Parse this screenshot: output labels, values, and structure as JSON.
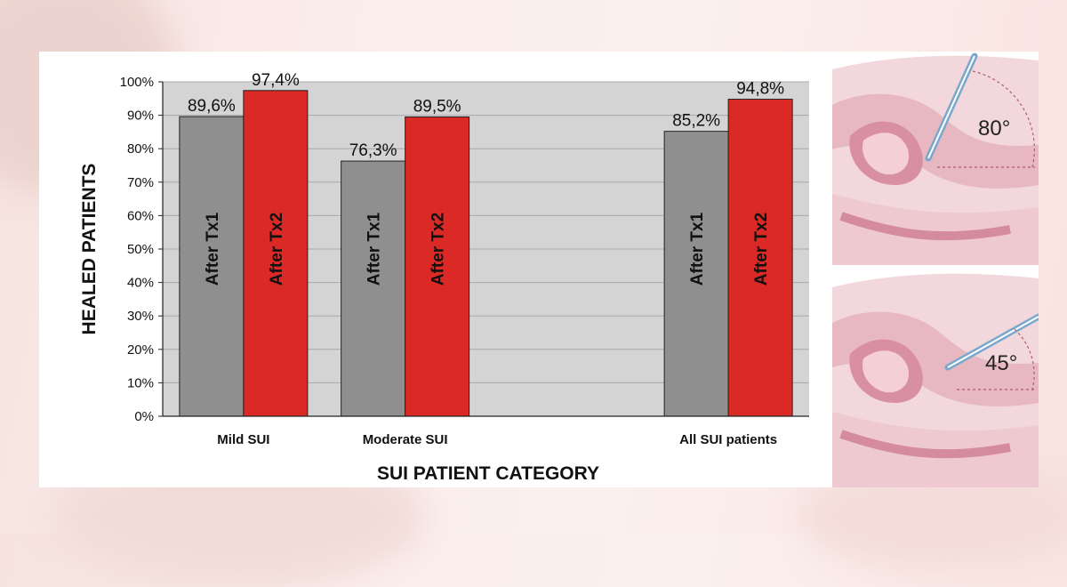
{
  "chart_data": {
    "type": "bar",
    "categories": [
      "Mild SUI",
      "Moderate SUI",
      "",
      "All SUI patients"
    ],
    "series": [
      {
        "name": "After Tx1",
        "values": [
          89.6,
          76.3,
          null,
          85.2
        ],
        "color": "#8f8f8f",
        "labels": [
          "89,6%",
          "76,3%",
          "",
          "85,2%"
        ]
      },
      {
        "name": "After Tx2",
        "values": [
          97.4,
          89.5,
          null,
          94.8
        ],
        "color": "#db2a26",
        "labels": [
          "97,4%",
          "89,5%",
          "",
          "94,8%"
        ]
      }
    ],
    "ylim": [
      0,
      100
    ],
    "yticks": [
      "0%",
      "10%",
      "20%",
      "30%",
      "40%",
      "50%",
      "60%",
      "70%",
      "80%",
      "90%",
      "100%"
    ],
    "ylabel": "HEALED PATIENTS",
    "xlabel": "SUI PATIENT CATEGORY",
    "plot_background": "#d4d4d4"
  },
  "illustration": {
    "angle_top": "80°",
    "angle_bottom": "45°"
  }
}
